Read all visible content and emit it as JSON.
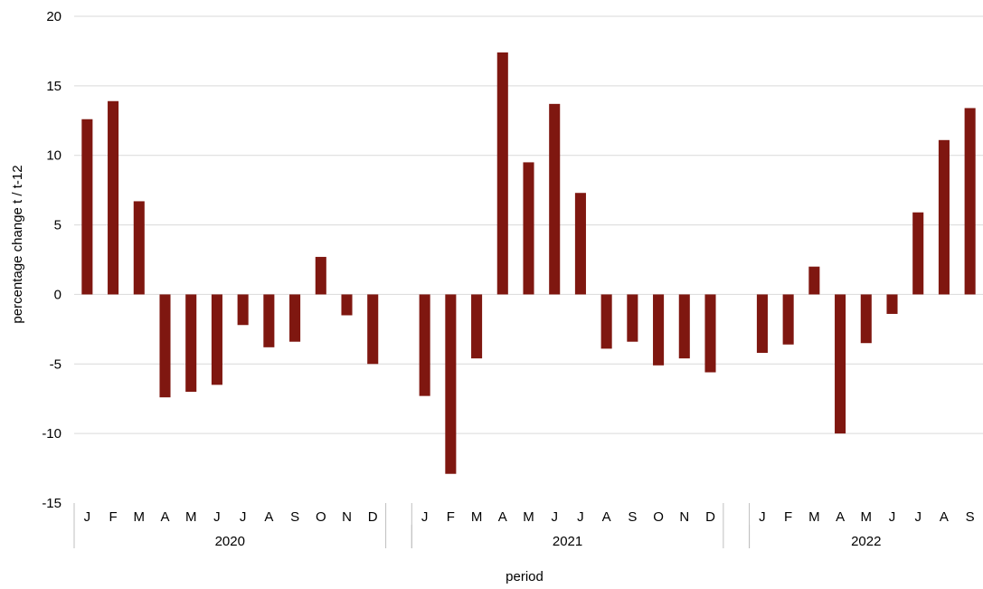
{
  "chart_data": {
    "type": "bar",
    "xlabel": "period",
    "ylabel": "percentage change t / t-12",
    "ylim": [
      -15,
      20
    ],
    "yticks": [
      -15,
      -10,
      -5,
      0,
      5,
      10,
      15,
      20
    ],
    "ytick_labels": [
      "-15",
      "-10",
      "-5",
      "0",
      "5",
      "10",
      "15",
      "20"
    ],
    "grid": "horizontal",
    "bar_color": "#7f1710",
    "groups": [
      {
        "label": "2020",
        "months": [
          "J",
          "F",
          "M",
          "A",
          "M",
          "J",
          "J",
          "A",
          "S",
          "O",
          "N",
          "D"
        ],
        "values": [
          12.6,
          13.9,
          6.7,
          -7.4,
          -7.0,
          -6.5,
          -2.2,
          -3.8,
          -3.4,
          2.7,
          -1.5,
          -5.0
        ]
      },
      {
        "label": "2021",
        "months": [
          "J",
          "F",
          "M",
          "A",
          "M",
          "J",
          "J",
          "A",
          "S",
          "O",
          "N",
          "D"
        ],
        "values": [
          -7.3,
          -12.9,
          -4.6,
          17.4,
          9.5,
          13.7,
          7.3,
          -3.9,
          -3.4,
          -5.1,
          -4.6,
          -5.6
        ]
      },
      {
        "label": "2022",
        "months": [
          "J",
          "F",
          "M",
          "A",
          "M",
          "J",
          "J",
          "A",
          "S"
        ],
        "values": [
          -4.2,
          -3.6,
          2.0,
          -10.0,
          -3.5,
          -1.4,
          5.9,
          11.1,
          13.4
        ]
      }
    ]
  }
}
